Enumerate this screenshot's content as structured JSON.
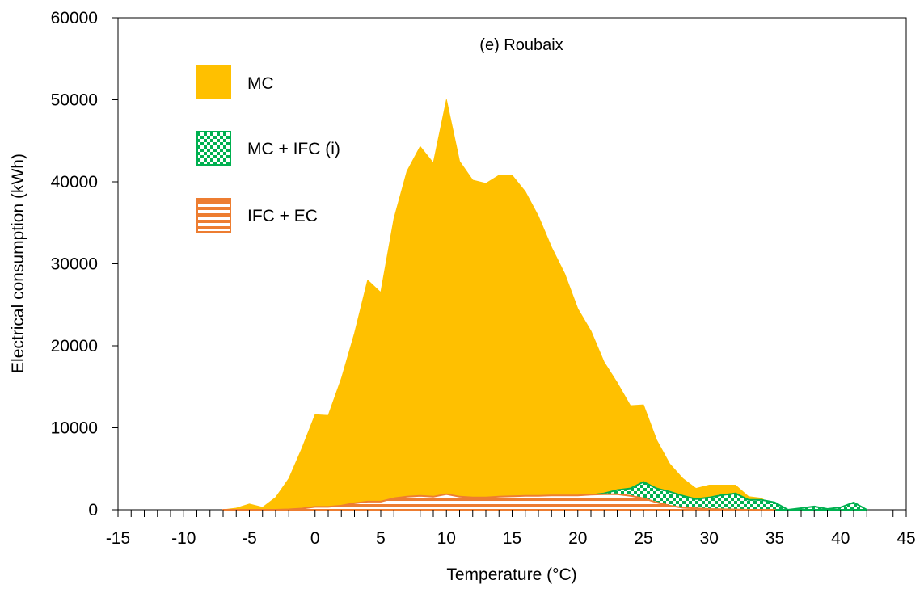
{
  "chart_data": {
    "type": "area",
    "title": "(e) Roubaix",
    "xlabel": "Temperature (°C)",
    "ylabel": "Electrical consumption (kWh)",
    "xlim": [
      -15,
      45
    ],
    "ylim": [
      0,
      60000
    ],
    "x_ticks": [
      "-15",
      "-10",
      "-5",
      "0",
      "5",
      "10",
      "15",
      "20",
      "25",
      "30",
      "35",
      "40",
      "45"
    ],
    "y_ticks": [
      "0",
      "10000",
      "20000",
      "30000",
      "40000",
      "50000",
      "60000"
    ],
    "grid": false,
    "legend_position": "top-left",
    "series": [
      {
        "name": "MC",
        "color": "#FFC000",
        "fill": "solid",
        "x": [
          -7,
          -6,
          -5,
          -4,
          -3,
          -2,
          -1,
          0,
          1,
          2,
          3,
          4,
          5,
          6,
          7,
          8,
          9,
          10,
          11,
          12,
          13,
          14,
          15,
          16,
          17,
          18,
          19,
          20,
          21,
          22,
          23,
          24,
          25,
          26,
          27,
          28,
          29,
          30,
          31,
          32,
          33,
          34,
          35
        ],
        "values": [
          0,
          200,
          700,
          300,
          1500,
          3800,
          7500,
          11600,
          11500,
          16000,
          21500,
          28000,
          26500,
          35500,
          41300,
          44300,
          42300,
          50000,
          42500,
          40200,
          39800,
          40800,
          40800,
          38800,
          35800,
          32000,
          28800,
          24500,
          21800,
          18000,
          15500,
          12700,
          12800,
          8500,
          5600,
          3800,
          2600,
          3000,
          3000,
          3000,
          1600,
          1400,
          0
        ]
      },
      {
        "name": "MC + IFC (i)",
        "color": "#00B050",
        "fill": "checker",
        "x": [
          21,
          22,
          23,
          24,
          25,
          26,
          27,
          28,
          29,
          30,
          31,
          32,
          33,
          34,
          35,
          36,
          37,
          38,
          39,
          40,
          41,
          42
        ],
        "values": [
          1800,
          2000,
          2400,
          2600,
          3400,
          2600,
          2200,
          1700,
          1300,
          1500,
          1800,
          2000,
          1200,
          1200,
          900,
          0,
          200,
          400,
          100,
          300,
          900,
          0
        ]
      },
      {
        "name": "IFC + EC",
        "color": "#ED7D31",
        "fill": "stripes",
        "x": [
          -7,
          -5,
          -3,
          -2,
          -1,
          0,
          1,
          2,
          3,
          4,
          5,
          6,
          7,
          8,
          9,
          10,
          11,
          12,
          13,
          14,
          15,
          16,
          17,
          18,
          19,
          20,
          21,
          22,
          23,
          24,
          25,
          26,
          27,
          28,
          30,
          33,
          35
        ],
        "values": [
          0,
          0,
          0,
          50,
          150,
          350,
          350,
          500,
          800,
          1000,
          1000,
          1400,
          1600,
          1700,
          1600,
          1900,
          1600,
          1500,
          1500,
          1600,
          1650,
          1700,
          1700,
          1750,
          1750,
          1750,
          1850,
          1900,
          1900,
          1700,
          1400,
          900,
          500,
          250,
          100,
          0,
          0
        ]
      }
    ]
  }
}
